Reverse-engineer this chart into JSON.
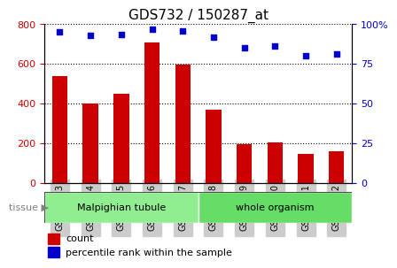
{
  "title": "GDS732 / 150287_at",
  "samples": [
    "GSM29173",
    "GSM29174",
    "GSM29175",
    "GSM29176",
    "GSM29177",
    "GSM29178",
    "GSM29179",
    "GSM29180",
    "GSM29181",
    "GSM29182"
  ],
  "counts": [
    540,
    400,
    450,
    710,
    595,
    370,
    195,
    205,
    145,
    160
  ],
  "percentiles": [
    95,
    93,
    93.5,
    97,
    95.5,
    92,
    85,
    86,
    80,
    81
  ],
  "tissue_groups": [
    {
      "label": "Malpighian tubule",
      "start": 0,
      "end": 4,
      "color": "#90EE90"
    },
    {
      "label": "whole organism",
      "start": 5,
      "end": 9,
      "color": "#66DD66"
    }
  ],
  "bar_color": "#CC0000",
  "dot_color": "#0000CC",
  "left_ylim": [
    0,
    800
  ],
  "left_yticks": [
    0,
    200,
    400,
    600,
    800
  ],
  "right_ylim": [
    0,
    100
  ],
  "right_yticks": [
    0,
    25,
    50,
    75,
    100
  ],
  "right_yticklabels": [
    "0",
    "25",
    "50",
    "75",
    "100%"
  ],
  "grid_color": "#000000",
  "tick_label_color_left": "#CC0000",
  "tick_label_color_right": "#0000CC",
  "bg_plot": "#ffffff",
  "bg_xtick": "#cccccc",
  "legend_count_label": "count",
  "legend_pct_label": "percentile rank within the sample",
  "tissue_label": "tissue",
  "bar_width": 0.5
}
